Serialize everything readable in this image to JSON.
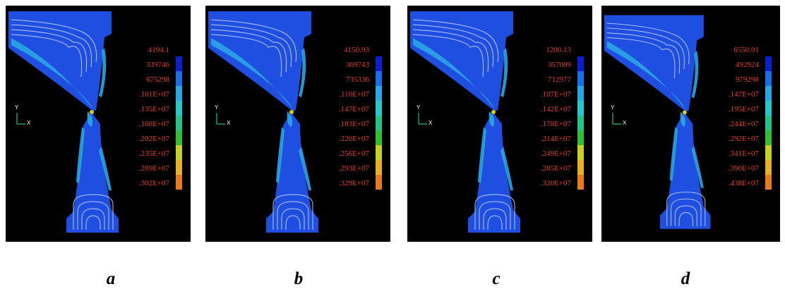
{
  "panels": [
    {
      "caption": "a",
      "legend": [
        "4194.1",
        "339746",
        "675298",
        ".101E+07",
        ".135E+07",
        ".168E+07",
        ".202E+07",
        ".235E+07",
        ".269E+07",
        ".302E+07"
      ]
    },
    {
      "caption": "b",
      "legend": [
        "4150.93",
        "369743",
        "735336",
        ".110E+07",
        ".147E+07",
        ".183E+07",
        ".220E+07",
        ".256E+07",
        ".293E+07",
        ".329E+07"
      ]
    },
    {
      "caption": "c",
      "legend": [
        "1200.13",
        "357089",
        "712977",
        ".107E+07",
        ".142E+07",
        ".178E+07",
        ".214E+07",
        ".249E+07",
        ".285E+07",
        ".320E+07"
      ]
    },
    {
      "caption": "d",
      "legend": [
        "6550.01",
        "492924",
        "979298",
        ".147E+07",
        ".195E+07",
        ".244E+07",
        ".292E+07",
        ".341E+07",
        ".390E+07",
        ".438E+07"
      ]
    }
  ],
  "axis_labels": {
    "y": "Y",
    "x": "X"
  },
  "colors": {
    "background": "#000000",
    "body": "#1f4fe0",
    "contour_light": "#2aa6e6",
    "contour_lines": "#b8c8f0",
    "legend_text": "#e0402a",
    "scale": [
      "#0a1fd0",
      "#1a6fe8",
      "#24a8e6",
      "#25c9c9",
      "#22c28a",
      "#2fbf2f",
      "#c8d21e",
      "#e8b020",
      "#e87a1a",
      "#d82020"
    ]
  }
}
